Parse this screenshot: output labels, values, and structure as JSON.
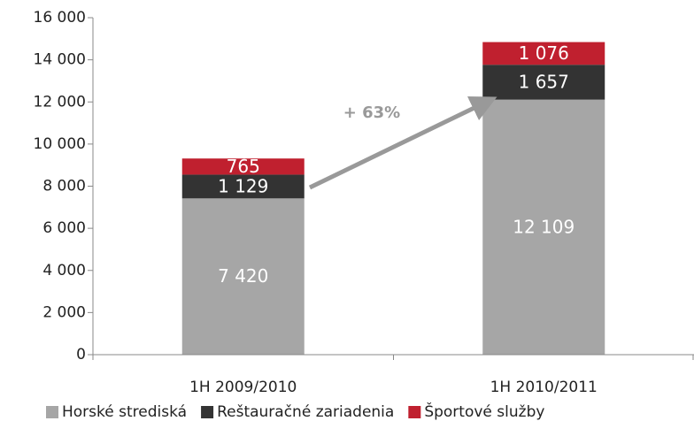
{
  "chart_data": {
    "type": "stacked_bar",
    "categories": [
      "1H 2009/2010",
      "1H 2010/2011"
    ],
    "series": [
      {
        "name": "Horské strediská",
        "color": "#a6a6a6",
        "values": [
          7420,
          12109
        ],
        "value_labels": [
          "7 420",
          "12 109"
        ]
      },
      {
        "name": "Reštauračné zariadenia",
        "color": "#333333",
        "values": [
          1129,
          1657
        ],
        "value_labels": [
          "1 129",
          "1 657"
        ]
      },
      {
        "name": "Športové služby",
        "color": "#c0202f",
        "values": [
          765,
          1076
        ],
        "value_labels": [
          "765",
          "1 076"
        ]
      }
    ],
    "ylim": [
      0,
      16000
    ],
    "yticks": [
      0,
      {
        "value": 2000,
        "label": "2 000"
      },
      {
        "value": 4000,
        "label": "4 000"
      },
      {
        "value": 6000,
        "label": "6 000"
      },
      {
        "value": 8000,
        "label": "8 000"
      },
      {
        "value": 10000,
        "label": "10 000"
      },
      {
        "value": 12000,
        "label": "12 000"
      },
      {
        "value": 14000,
        "label": "14 000"
      },
      {
        "value": 16000,
        "label": "16 000"
      }
    ],
    "annotation": "+ 63%",
    "legend": "bottom"
  }
}
